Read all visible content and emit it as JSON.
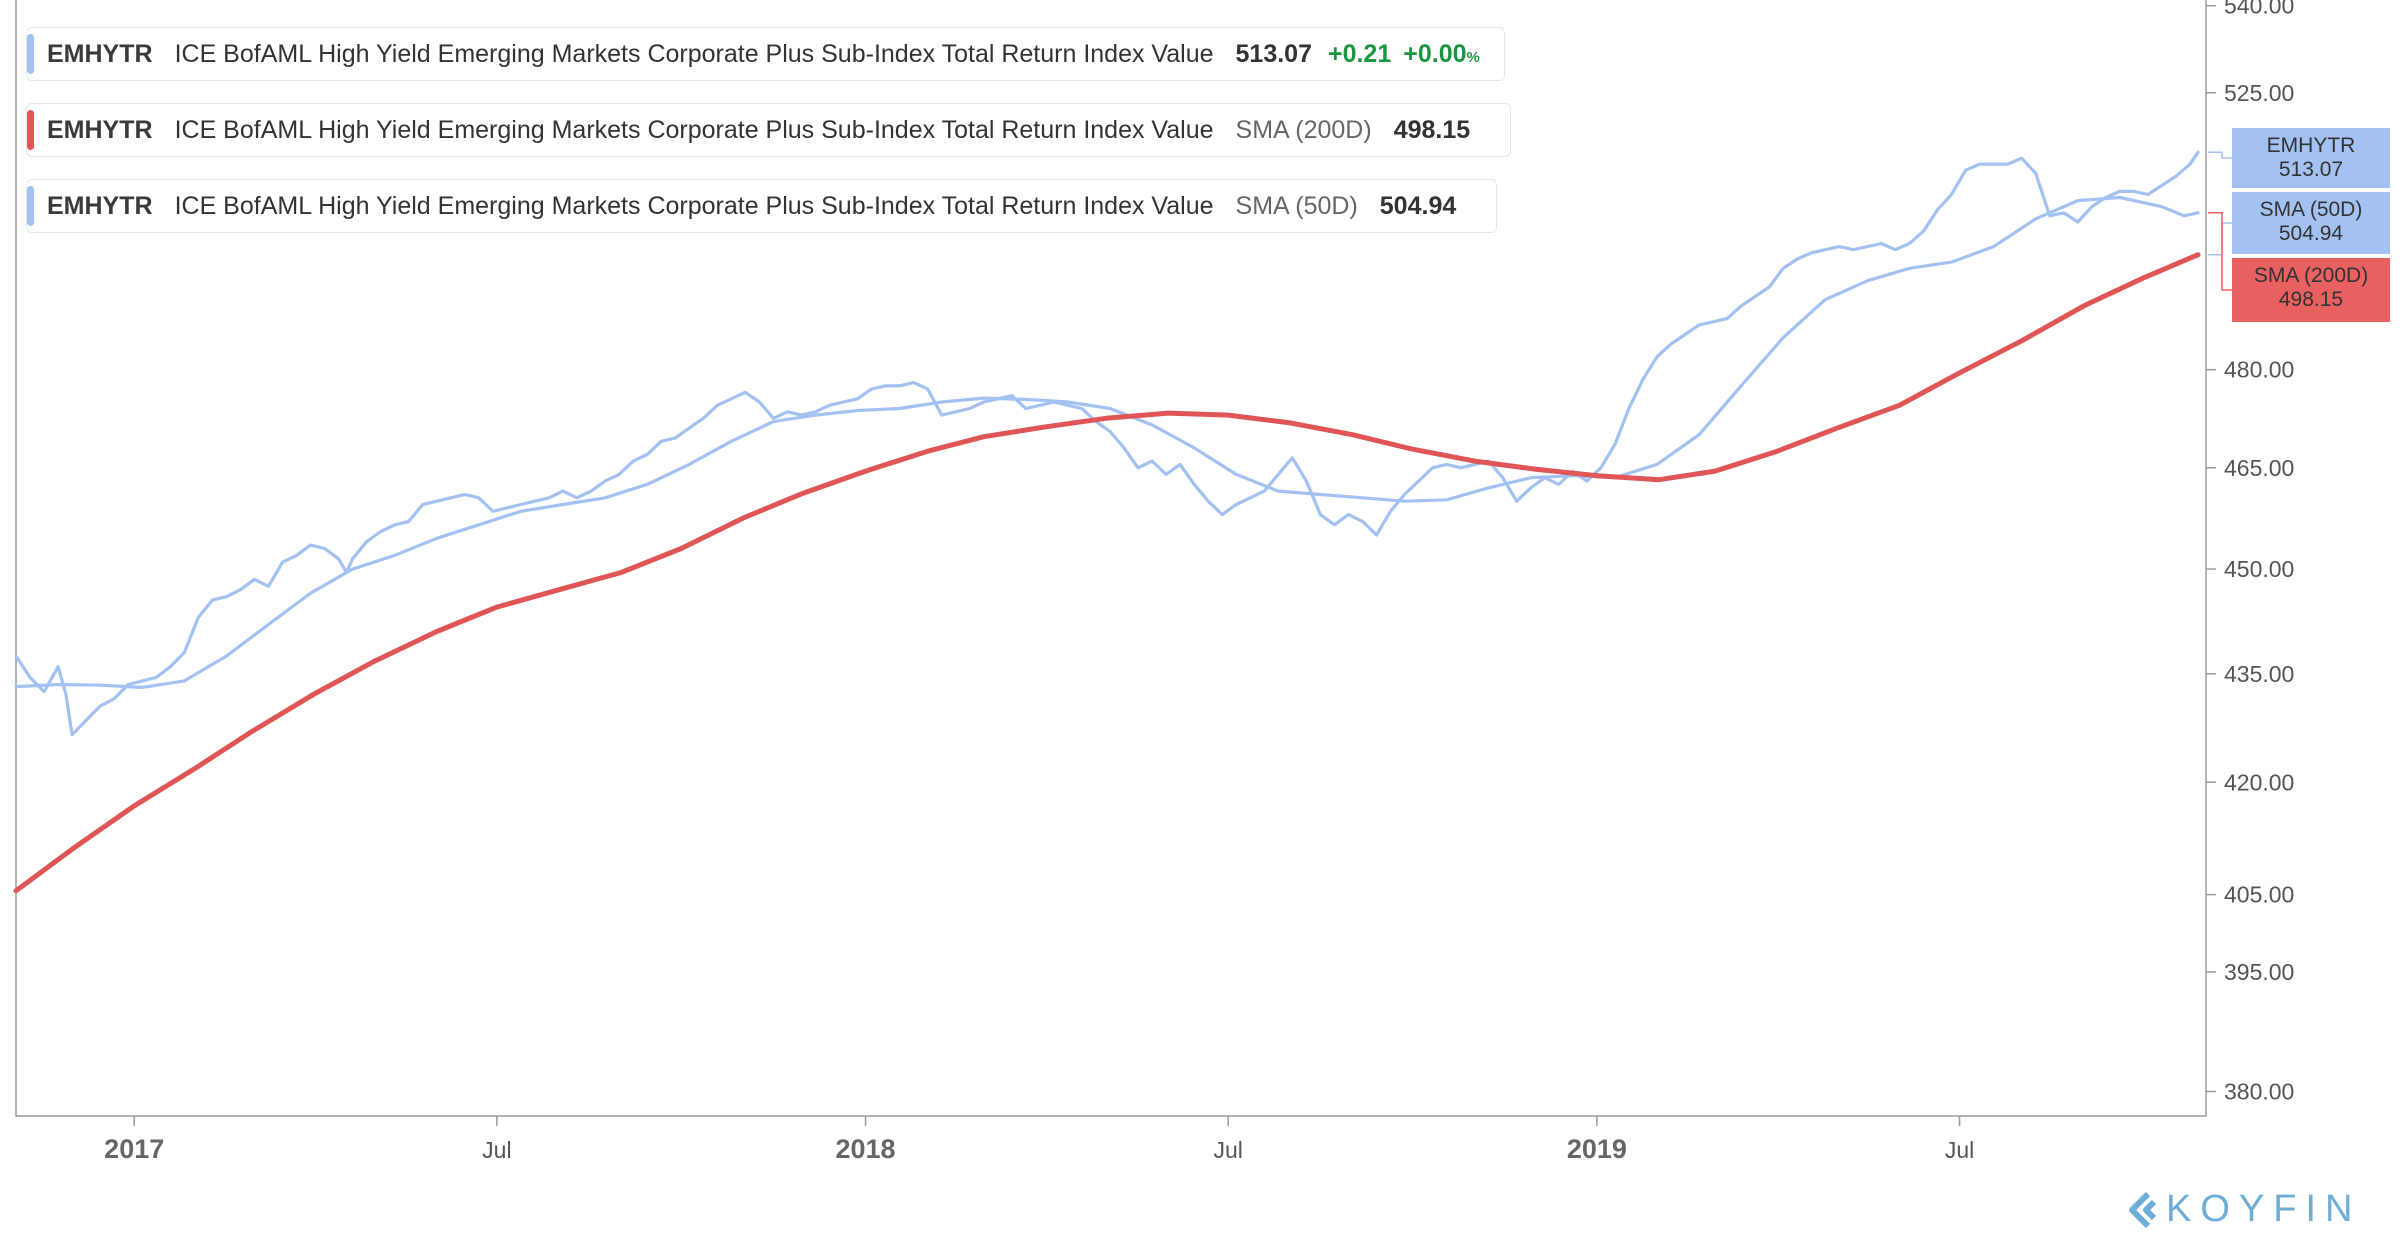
{
  "legend": [
    {
      "symbol": "EMHYTR",
      "description": "ICE BofAML High Yield Emerging Markets Corporate Plus Sub-Index Total Return Index Value",
      "value": "513.07",
      "change": "+0.21",
      "change_pct": "+0.00",
      "pct_sign": "%",
      "color": "#a3c2f2"
    },
    {
      "symbol": "EMHYTR",
      "description": "ICE BofAML High Yield Emerging Markets Corporate Plus Sub-Index Total Return Index Value",
      "indicator": "SMA (200D)",
      "value": "498.15",
      "color": "#e05555"
    },
    {
      "symbol": "EMHYTR",
      "description": "ICE BofAML High Yield Emerging Markets Corporate Plus Sub-Index Total Return Index Value",
      "indicator": "SMA (50D)",
      "value": "504.94",
      "color": "#a3c2f2"
    }
  ],
  "tags": [
    {
      "line1": "EMHYTR",
      "line2": "513.07",
      "color": "#a3c2f2"
    },
    {
      "line1": "SMA (50D)",
      "line2": "504.94",
      "color": "#a3c2f2"
    },
    {
      "line1": "SMA (200D)",
      "line2": "498.15",
      "color": "#e86060"
    }
  ],
  "brand": {
    "name": "KOYFIN",
    "color": "#6eaed6"
  },
  "chart_data": {
    "type": "line",
    "y_scale": "log",
    "ylim": [
      377,
      541
    ],
    "xlim": [
      "2016-11-03",
      "2019-11-01"
    ],
    "y_ticks": [
      "380.00",
      "395.00",
      "405.00",
      "420.00",
      "435.00",
      "450.00",
      "465.00",
      "480.00",
      "525.00",
      "540.00"
    ],
    "x_ticks": [
      {
        "label": "2017",
        "date": "2017-01-01",
        "major": true
      },
      {
        "label": "Jul",
        "date": "2017-07-01",
        "major": false
      },
      {
        "label": "2018",
        "date": "2018-01-01",
        "major": true
      },
      {
        "label": "Jul",
        "date": "2018-07-01",
        "major": false
      },
      {
        "label": "2019",
        "date": "2019-01-01",
        "major": true
      },
      {
        "label": "Jul",
        "date": "2019-07-01",
        "major": false
      }
    ],
    "series": [
      {
        "name": "EMHYTR",
        "color": "#a3c2f2",
        "points": [
          [
            "2016-11-03",
            437.5
          ],
          [
            "2016-11-10",
            434.5
          ],
          [
            "2016-11-17",
            432.5
          ],
          [
            "2016-11-24",
            436.0
          ],
          [
            "2016-11-28",
            432.0
          ],
          [
            "2016-12-01",
            426.5
          ],
          [
            "2016-12-08",
            428.5
          ],
          [
            "2016-12-15",
            430.5
          ],
          [
            "2016-12-22",
            431.5
          ],
          [
            "2016-12-29",
            433.5
          ],
          [
            "2017-01-05",
            434.0
          ],
          [
            "2017-01-12",
            434.5
          ],
          [
            "2017-01-19",
            436.0
          ],
          [
            "2017-01-26",
            438.0
          ],
          [
            "2017-02-02",
            443.0
          ],
          [
            "2017-02-09",
            445.5
          ],
          [
            "2017-02-16",
            446.0
          ],
          [
            "2017-02-23",
            447.0
          ],
          [
            "2017-03-02",
            448.5
          ],
          [
            "2017-03-09",
            447.5
          ],
          [
            "2017-03-16",
            451.0
          ],
          [
            "2017-03-23",
            452.0
          ],
          [
            "2017-03-30",
            453.5
          ],
          [
            "2017-04-06",
            453.0
          ],
          [
            "2017-04-13",
            451.5
          ],
          [
            "2017-04-17",
            449.5
          ],
          [
            "2017-04-20",
            451.5
          ],
          [
            "2017-04-27",
            454.0
          ],
          [
            "2017-05-04",
            455.5
          ],
          [
            "2017-05-11",
            456.5
          ],
          [
            "2017-05-18",
            457.0
          ],
          [
            "2017-05-25",
            459.5
          ],
          [
            "2017-06-01",
            460.0
          ],
          [
            "2017-06-08",
            460.5
          ],
          [
            "2017-06-15",
            461.0
          ],
          [
            "2017-06-22",
            460.5
          ],
          [
            "2017-06-29",
            458.5
          ],
          [
            "2017-07-06",
            459.0
          ],
          [
            "2017-07-13",
            459.5
          ],
          [
            "2017-07-20",
            460.0
          ],
          [
            "2017-07-27",
            460.5
          ],
          [
            "2017-08-03",
            461.5
          ],
          [
            "2017-08-10",
            460.5
          ],
          [
            "2017-08-17",
            461.5
          ],
          [
            "2017-08-24",
            463.0
          ],
          [
            "2017-08-31",
            464.0
          ],
          [
            "2017-09-07",
            466.0
          ],
          [
            "2017-09-14",
            467.0
          ],
          [
            "2017-09-21",
            469.0
          ],
          [
            "2017-09-28",
            469.5
          ],
          [
            "2017-10-05",
            471.0
          ],
          [
            "2017-10-12",
            472.5
          ],
          [
            "2017-10-19",
            474.5
          ],
          [
            "2017-10-26",
            475.5
          ],
          [
            "2017-11-02",
            476.5
          ],
          [
            "2017-11-09",
            475.0
          ],
          [
            "2017-11-16",
            472.5
          ],
          [
            "2017-11-23",
            473.5
          ],
          [
            "2017-11-30",
            473.0
          ],
          [
            "2017-12-07",
            473.5
          ],
          [
            "2017-12-14",
            474.5
          ],
          [
            "2017-12-21",
            475.0
          ],
          [
            "2017-12-28",
            475.5
          ],
          [
            "2018-01-04",
            477.0
          ],
          [
            "2018-01-11",
            477.5
          ],
          [
            "2018-01-18",
            477.5
          ],
          [
            "2018-01-25",
            478.0
          ],
          [
            "2018-02-01",
            477.0
          ],
          [
            "2018-02-08",
            473.0
          ],
          [
            "2018-02-15",
            473.5
          ],
          [
            "2018-02-22",
            474.0
          ],
          [
            "2018-03-01",
            475.0
          ],
          [
            "2018-03-08",
            475.5
          ],
          [
            "2018-03-15",
            476.0
          ],
          [
            "2018-03-22",
            474.0
          ],
          [
            "2018-03-29",
            474.5
          ],
          [
            "2018-04-05",
            475.0
          ],
          [
            "2018-04-12",
            474.5
          ],
          [
            "2018-04-19",
            474.0
          ],
          [
            "2018-04-26",
            472.0
          ],
          [
            "2018-05-03",
            470.5
          ],
          [
            "2018-05-10",
            468.0
          ],
          [
            "2018-05-17",
            465.0
          ],
          [
            "2018-05-24",
            466.0
          ],
          [
            "2018-05-31",
            464.0
          ],
          [
            "2018-06-07",
            465.5
          ],
          [
            "2018-06-14",
            462.5
          ],
          [
            "2018-06-21",
            460.0
          ],
          [
            "2018-06-28",
            458.0
          ],
          [
            "2018-07-05",
            459.5
          ],
          [
            "2018-07-12",
            460.5
          ],
          [
            "2018-07-19",
            461.5
          ],
          [
            "2018-07-26",
            464.0
          ],
          [
            "2018-08-02",
            466.5
          ],
          [
            "2018-08-09",
            463.0
          ],
          [
            "2018-08-16",
            458.0
          ],
          [
            "2018-08-23",
            456.5
          ],
          [
            "2018-08-30",
            458.0
          ],
          [
            "2018-09-06",
            457.0
          ],
          [
            "2018-09-13",
            455.0
          ],
          [
            "2018-09-20",
            458.5
          ],
          [
            "2018-09-27",
            461.0
          ],
          [
            "2018-10-04",
            463.0
          ],
          [
            "2018-10-11",
            465.0
          ],
          [
            "2018-10-18",
            465.5
          ],
          [
            "2018-10-25",
            465.0
          ],
          [
            "2018-11-01",
            465.5
          ],
          [
            "2018-11-08",
            466.0
          ],
          [
            "2018-11-15",
            463.5
          ],
          [
            "2018-11-22",
            460.0
          ],
          [
            "2018-11-29",
            462.0
          ],
          [
            "2018-12-06",
            463.5
          ],
          [
            "2018-12-13",
            462.5
          ],
          [
            "2018-12-20",
            464.5
          ],
          [
            "2018-12-27",
            463.0
          ],
          [
            "2019-01-03",
            465.0
          ],
          [
            "2019-01-10",
            468.5
          ],
          [
            "2019-01-17",
            474.0
          ],
          [
            "2019-01-24",
            478.5
          ],
          [
            "2019-01-31",
            482.0
          ],
          [
            "2019-02-07",
            484.0
          ],
          [
            "2019-02-14",
            485.5
          ],
          [
            "2019-02-21",
            487.0
          ],
          [
            "2019-02-28",
            487.5
          ],
          [
            "2019-03-07",
            488.0
          ],
          [
            "2019-03-14",
            490.0
          ],
          [
            "2019-03-21",
            491.5
          ],
          [
            "2019-03-28",
            493.0
          ],
          [
            "2019-04-04",
            496.0
          ],
          [
            "2019-04-11",
            497.5
          ],
          [
            "2019-04-18",
            498.5
          ],
          [
            "2019-04-25",
            499.0
          ],
          [
            "2019-05-02",
            499.5
          ],
          [
            "2019-05-09",
            499.0
          ],
          [
            "2019-05-16",
            499.5
          ],
          [
            "2019-05-23",
            500.0
          ],
          [
            "2019-05-30",
            499.0
          ],
          [
            "2019-06-06",
            500.0
          ],
          [
            "2019-06-13",
            502.0
          ],
          [
            "2019-06-20",
            505.5
          ],
          [
            "2019-06-27",
            508.0
          ],
          [
            "2019-07-04",
            512.0
          ],
          [
            "2019-07-11",
            513.0
          ],
          [
            "2019-07-18",
            513.0
          ],
          [
            "2019-07-25",
            513.0
          ],
          [
            "2019-08-01",
            514.0
          ],
          [
            "2019-08-08",
            511.5
          ],
          [
            "2019-08-15",
            504.5
          ],
          [
            "2019-08-22",
            505.0
          ],
          [
            "2019-08-29",
            503.5
          ],
          [
            "2019-09-05",
            506.0
          ],
          [
            "2019-09-12",
            507.5
          ],
          [
            "2019-09-19",
            508.5
          ],
          [
            "2019-09-26",
            508.5
          ],
          [
            "2019-10-03",
            508.0
          ],
          [
            "2019-10-10",
            509.5
          ],
          [
            "2019-10-17",
            511.0
          ],
          [
            "2019-10-24",
            513.0
          ],
          [
            "2019-10-28",
            515.0
          ]
        ]
      },
      {
        "name": "SMA (50D)",
        "color": "#a3c2f2",
        "points": [
          [
            "2016-11-03",
            433.2
          ],
          [
            "2016-11-24",
            433.5
          ],
          [
            "2016-12-15",
            433.4
          ],
          [
            "2017-01-05",
            433.1
          ],
          [
            "2017-01-26",
            434.0
          ],
          [
            "2017-02-16",
            437.5
          ],
          [
            "2017-03-09",
            442.0
          ],
          [
            "2017-03-30",
            446.5
          ],
          [
            "2017-04-20",
            450.0
          ],
          [
            "2017-05-11",
            452.0
          ],
          [
            "2017-06-01",
            454.5
          ],
          [
            "2017-06-22",
            456.5
          ],
          [
            "2017-07-13",
            458.5
          ],
          [
            "2017-08-03",
            459.5
          ],
          [
            "2017-08-24",
            460.5
          ],
          [
            "2017-09-14",
            462.5
          ],
          [
            "2017-10-05",
            465.5
          ],
          [
            "2017-10-26",
            469.0
          ],
          [
            "2017-11-16",
            472.0
          ],
          [
            "2017-12-07",
            473.0
          ],
          [
            "2017-12-28",
            473.7
          ],
          [
            "2018-01-18",
            474.0
          ],
          [
            "2018-02-08",
            475.0
          ],
          [
            "2018-03-01",
            475.6
          ],
          [
            "2018-03-22",
            475.4
          ],
          [
            "2018-04-12",
            475.0
          ],
          [
            "2018-05-03",
            474.0
          ],
          [
            "2018-05-24",
            471.5
          ],
          [
            "2018-06-14",
            468.0
          ],
          [
            "2018-07-05",
            464.0
          ],
          [
            "2018-07-26",
            461.5
          ],
          [
            "2018-08-16",
            461.0
          ],
          [
            "2018-09-06",
            460.5
          ],
          [
            "2018-09-27",
            460.0
          ],
          [
            "2018-10-18",
            460.2
          ],
          [
            "2018-11-08",
            462.0
          ],
          [
            "2018-11-29",
            463.5
          ],
          [
            "2018-12-20",
            463.8
          ],
          [
            "2019-01-10",
            463.5
          ],
          [
            "2019-01-31",
            465.5
          ],
          [
            "2019-02-21",
            470.0
          ],
          [
            "2019-03-14",
            477.5
          ],
          [
            "2019-04-04",
            485.0
          ],
          [
            "2019-04-25",
            491.0
          ],
          [
            "2019-05-16",
            494.0
          ],
          [
            "2019-06-06",
            496.0
          ],
          [
            "2019-06-27",
            497.0
          ],
          [
            "2019-07-18",
            499.5
          ],
          [
            "2019-08-08",
            504.0
          ],
          [
            "2019-08-29",
            507.0
          ],
          [
            "2019-09-19",
            507.5
          ],
          [
            "2019-10-10",
            506.0
          ],
          [
            "2019-10-21",
            504.5
          ],
          [
            "2019-10-28",
            505.0
          ]
        ]
      },
      {
        "name": "SMA (200D)",
        "color": "#e05555",
        "points": [
          [
            "2016-11-03",
            405.5
          ],
          [
            "2016-12-01",
            411.0
          ],
          [
            "2017-01-01",
            416.8
          ],
          [
            "2017-02-01",
            422.0
          ],
          [
            "2017-03-01",
            427.0
          ],
          [
            "2017-04-01",
            432.2
          ],
          [
            "2017-05-01",
            436.8
          ],
          [
            "2017-06-01",
            441.0
          ],
          [
            "2017-07-01",
            444.5
          ],
          [
            "2017-08-01",
            447.0
          ],
          [
            "2017-09-01",
            449.5
          ],
          [
            "2017-10-01",
            453.0
          ],
          [
            "2017-11-01",
            457.5
          ],
          [
            "2017-12-01",
            461.2
          ],
          [
            "2018-01-01",
            464.5
          ],
          [
            "2018-02-01",
            467.5
          ],
          [
            "2018-03-01",
            469.7
          ],
          [
            "2018-04-01",
            471.2
          ],
          [
            "2018-05-01",
            472.5
          ],
          [
            "2018-06-01",
            473.3
          ],
          [
            "2018-07-01",
            473.0
          ],
          [
            "2018-08-01",
            471.8
          ],
          [
            "2018-09-01",
            470.0
          ],
          [
            "2018-10-01",
            467.8
          ],
          [
            "2018-11-01",
            466.0
          ],
          [
            "2018-12-01",
            464.8
          ],
          [
            "2019-01-01",
            463.8
          ],
          [
            "2019-02-01",
            463.2
          ],
          [
            "2019-03-01",
            464.5
          ],
          [
            "2019-04-01",
            467.5
          ],
          [
            "2019-05-01",
            471.0
          ],
          [
            "2019-06-01",
            474.5
          ],
          [
            "2019-07-01",
            479.5
          ],
          [
            "2019-08-01",
            484.5
          ],
          [
            "2019-09-01",
            490.0
          ],
          [
            "2019-10-01",
            494.5
          ],
          [
            "2019-10-28",
            498.2
          ]
        ]
      }
    ]
  }
}
